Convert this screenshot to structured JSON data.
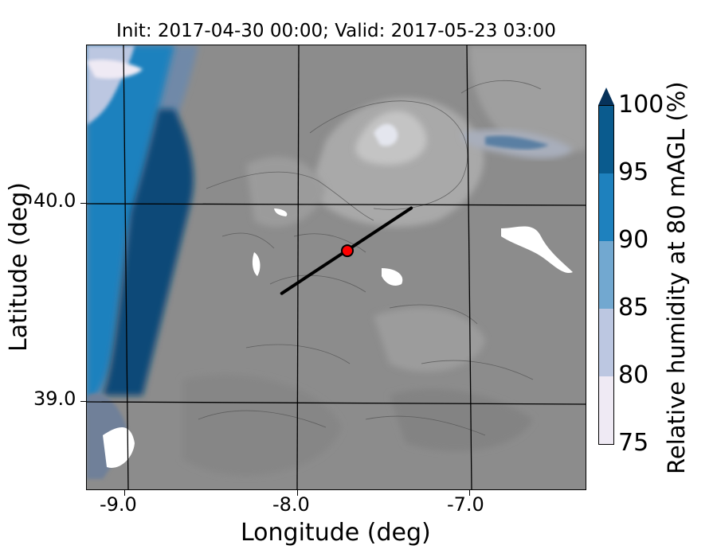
{
  "title": "Init: 2017-04-30 00:00; Valid: 2017-05-23 03:00",
  "xaxis": {
    "label": "Longitude (deg)",
    "ticks": [
      "-9.0",
      "-8.0",
      "-7.0"
    ]
  },
  "yaxis": {
    "label": "Latitude (deg)",
    "ticks": [
      "40.0",
      "39.0"
    ]
  },
  "colorbar": {
    "label": "Relative humidity at 80 mAGL (%)",
    "ticks": [
      "75",
      "80",
      "85",
      "90",
      "95",
      "100"
    ],
    "colors": [
      "#efeaf4",
      "#bcc7e1",
      "#72a8d0",
      "#1e81be",
      "#0a5b8e"
    ],
    "extend_color": "#06325a"
  },
  "chart_data": {
    "type": "heatmap",
    "title": "Init: 2017-04-30 00:00; Valid: 2017-05-23 03:00",
    "xlabel": "Longitude (deg)",
    "ylabel": "Latitude (deg)",
    "xlim": [
      -9.25,
      -6.35
    ],
    "ylim": [
      38.45,
      40.75
    ],
    "colorbar_range": [
      75,
      100
    ],
    "colorbar_extend": "max",
    "terrain_shading": "gray",
    "grid": true,
    "transect": {
      "start": [
        -8.12,
        39.47
      ],
      "end": [
        -7.37,
        39.91
      ]
    },
    "marker": {
      "lon": -7.74,
      "lat": 39.69,
      "color": "#ff0000"
    }
  }
}
